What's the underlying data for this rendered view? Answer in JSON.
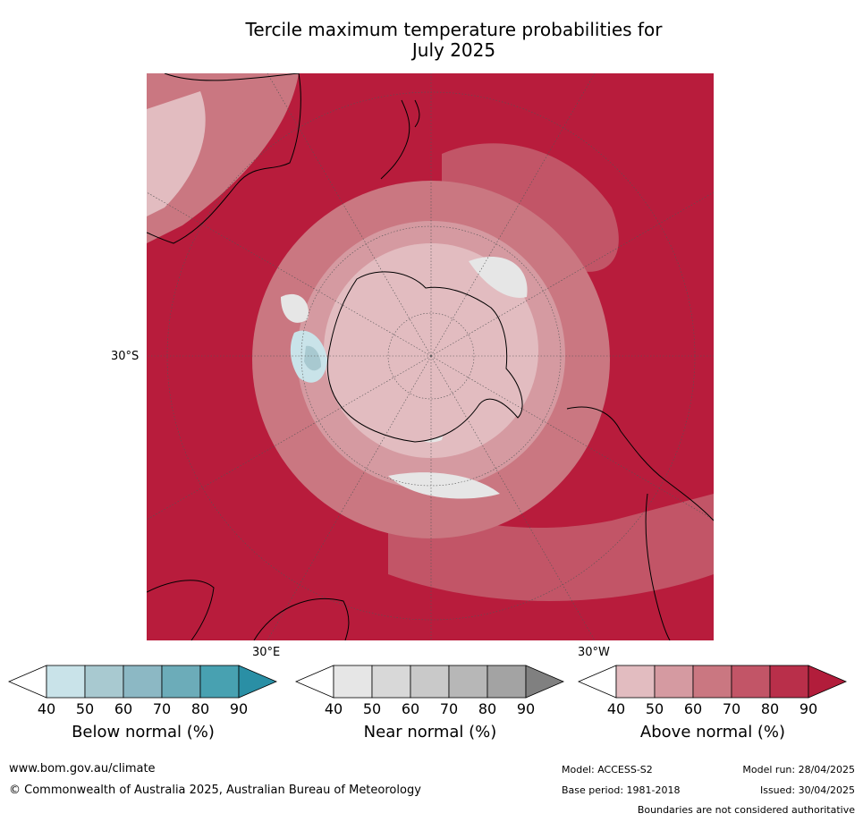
{
  "title_line1": "Tercile maximum temperature probabilities for",
  "title_line2": "July 2025",
  "map": {
    "projection": "south-polar-stereographic",
    "lat_label": "30°S",
    "lon_label_left": "30°E",
    "lon_label_right": "30°W",
    "colors": {
      "ocean_base": "#b81c3c",
      "above_40": "#e2bcc0",
      "above_50": "#d59aa1",
      "above_60": "#ca7781",
      "above_70": "#c25567",
      "above_80": "#b92f4a",
      "near_40": "#e6e6e6",
      "below_40": "#c9e3e9",
      "below_50": "#a8c9d0"
    }
  },
  "colorbars": [
    {
      "label": "Below normal (%)",
      "ticks": [
        "40",
        "50",
        "60",
        "70",
        "80",
        "90"
      ],
      "colors": [
        "#c9e3e9",
        "#a8c9d0",
        "#8cb8c4",
        "#6cacb9",
        "#48a1b1"
      ],
      "extend_color": "#2a8fa5"
    },
    {
      "label": "Near normal (%)",
      "ticks": [
        "40",
        "50",
        "60",
        "70",
        "80",
        "90"
      ],
      "colors": [
        "#e6e6e6",
        "#d8d8d8",
        "#c9c9c9",
        "#b7b7b7",
        "#a3a3a3"
      ],
      "extend_color": "#808080"
    },
    {
      "label": "Above normal (%)",
      "ticks": [
        "40",
        "50",
        "60",
        "70",
        "80",
        "90"
      ],
      "colors": [
        "#e2bcc0",
        "#d59aa1",
        "#ca7781",
        "#c25567",
        "#b92f4a"
      ],
      "extend_color": "#b21d3b"
    }
  ],
  "footer": {
    "url": "www.bom.gov.au/climate",
    "copyright": "© Commonwealth of Australia 2025, Australian Bureau of Meteorology",
    "model": "Model: ACCESS-S2",
    "base_period": "Base period: 1981-2018",
    "model_run": "Model run: 28/04/2025",
    "issued": "Issued: 30/04/2025",
    "disclaimer": "Boundaries are not considered authoritative"
  }
}
